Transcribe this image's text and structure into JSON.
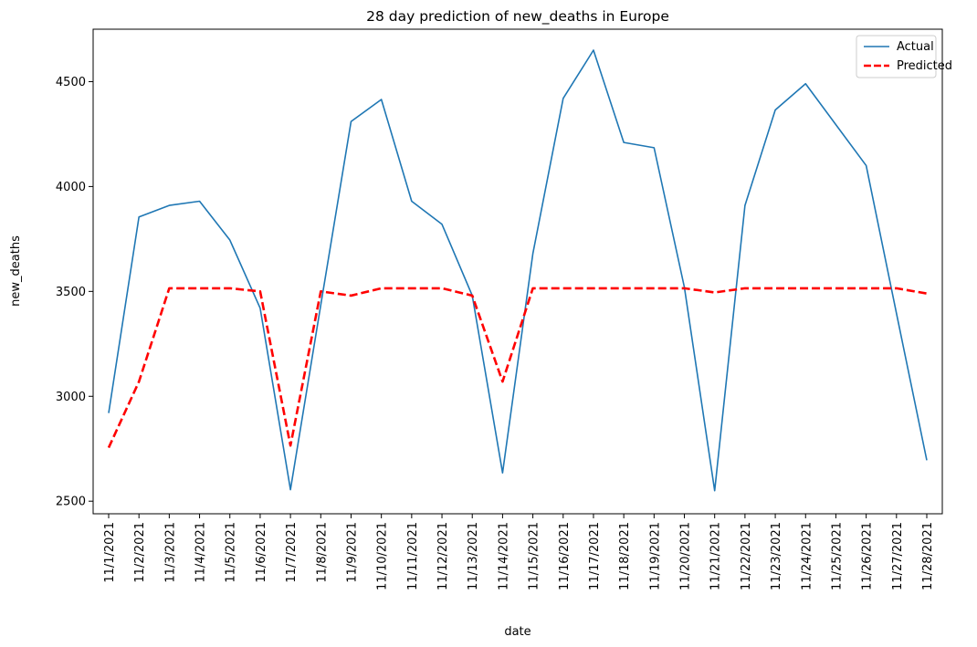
{
  "chart_data": {
    "type": "line",
    "title": "28 day prediction of new_deaths in Europe",
    "xlabel": "date",
    "ylabel": "new_deaths",
    "x": [
      "11/1/2021",
      "11/2/2021",
      "11/3/2021",
      "11/4/2021",
      "11/5/2021",
      "11/6/2021",
      "11/7/2021",
      "11/8/2021",
      "11/9/2021",
      "11/10/2021",
      "11/11/2021",
      "11/12/2021",
      "11/13/2021",
      "11/14/2021",
      "11/15/2021",
      "11/16/2021",
      "11/17/2021",
      "11/18/2021",
      "11/19/2021",
      "11/20/2021",
      "11/21/2021",
      "11/22/2021",
      "11/23/2021",
      "11/24/2021",
      "11/25/2021",
      "11/26/2021",
      "11/27/2021",
      "11/28/2021"
    ],
    "ylim": [
      2440,
      4750
    ],
    "yticks": [
      2500,
      3000,
      3500,
      4000,
      4500
    ],
    "ytick_labels": [
      "2500",
      "3000",
      "3500",
      "4000",
      "4500"
    ],
    "grid": false,
    "legend_position": "top-right",
    "series": [
      {
        "name": "Actual",
        "color": "#1f77b4",
        "style": "solid",
        "values": [
          2920,
          3855,
          3910,
          3930,
          3745,
          3420,
          2555,
          3435,
          4310,
          4415,
          3930,
          3820,
          3480,
          2635,
          3680,
          4420,
          4650,
          4210,
          4185,
          3520,
          2550,
          3910,
          4365,
          4490,
          4295,
          4100,
          3395,
          2695
        ]
      },
      {
        "name": "Predicted",
        "color": "#ff0000",
        "style": "dashed",
        "values": [
          2755,
          3070,
          3515,
          3515,
          3515,
          3500,
          2765,
          3500,
          3480,
          3515,
          3515,
          3515,
          3480,
          3070,
          3515,
          3515,
          3515,
          3515,
          3515,
          3515,
          3495,
          3515,
          3515,
          3515,
          3515,
          3515,
          3515,
          3490
        ]
      }
    ]
  }
}
